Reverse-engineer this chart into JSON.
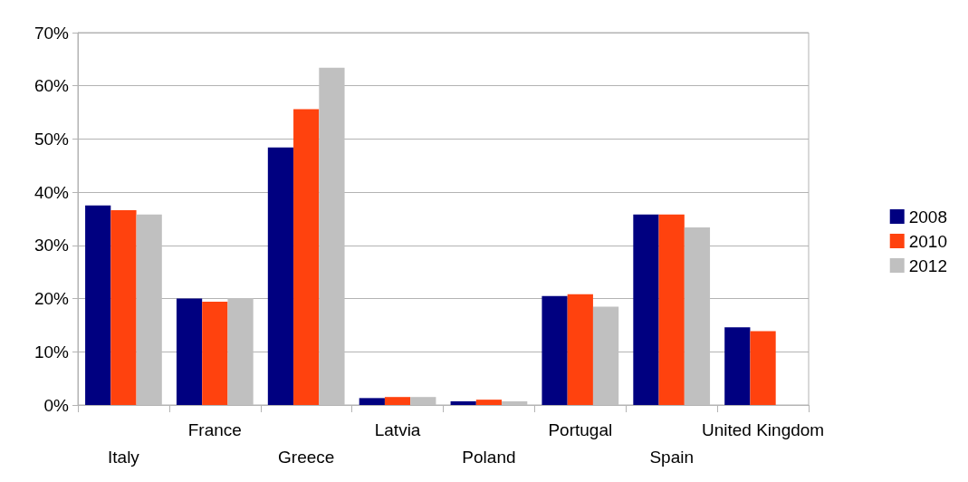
{
  "chart_data": {
    "type": "bar",
    "categories": [
      "Italy",
      "France",
      "Greece",
      "Latvia",
      "Poland",
      "Portugal",
      "Spain",
      "United Kingdom"
    ],
    "series": [
      {
        "name": "2008",
        "color": "#000080",
        "values": [
          37.5,
          20.0,
          48.4,
          1.3,
          0.7,
          20.5,
          35.8,
          14.6
        ]
      },
      {
        "name": "2010",
        "color": "#ff420e",
        "values": [
          36.6,
          19.4,
          55.6,
          1.5,
          1.0,
          20.8,
          35.8,
          13.9
        ]
      },
      {
        "name": "2012",
        "color": "#c0c0c0",
        "values": [
          35.8,
          20.1,
          63.4,
          1.5,
          0.7,
          18.5,
          33.4,
          null
        ]
      }
    ],
    "ylim": [
      0,
      70
    ],
    "yticks": [
      {
        "value": 0,
        "label": "0%"
      },
      {
        "value": 10,
        "label": "10%"
      },
      {
        "value": 20,
        "label": "20%"
      },
      {
        "value": 30,
        "label": "30%"
      },
      {
        "value": 40,
        "label": "40%"
      },
      {
        "value": 50,
        "label": "50%"
      },
      {
        "value": 60,
        "label": "60%"
      },
      {
        "value": 70,
        "label": "70%"
      }
    ],
    "grid": "y",
    "legend": "right"
  }
}
